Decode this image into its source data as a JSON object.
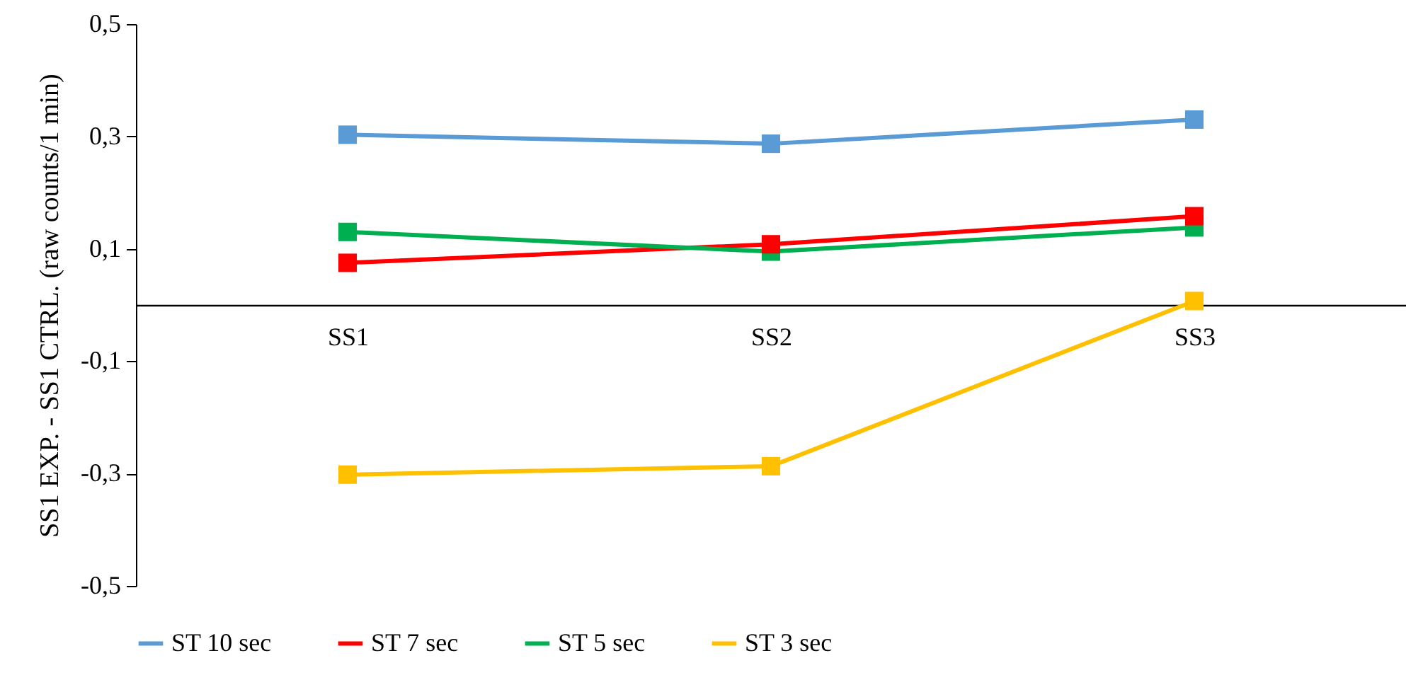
{
  "chart_data": {
    "type": "line",
    "ylabel": "SS1 EXP. - SS1 CTRL. (raw counts/1 min)",
    "categories": [
      "SS1",
      "SS2",
      "SS3"
    ],
    "series": [
      {
        "name": "ST 10 sec",
        "color": "#5b9bd5",
        "values": [
          0.303,
          0.287,
          0.33
        ]
      },
      {
        "name": "ST 7 sec",
        "color": "#ff0000",
        "values": [
          0.075,
          0.108,
          0.158
        ]
      },
      {
        "name": "ST 5 sec",
        "color": "#00b050",
        "values": [
          0.13,
          0.095,
          0.138
        ]
      },
      {
        "name": "ST 3 sec",
        "color": "#ffc000",
        "values": [
          -0.302,
          -0.287,
          0.007
        ]
      }
    ],
    "ylim": [
      -0.5,
      0.5
    ],
    "yticks": [
      {
        "value": -0.5,
        "label": "-0,5"
      },
      {
        "value": -0.3,
        "label": "-0,3"
      },
      {
        "value": -0.1,
        "label": "-0,1"
      },
      {
        "value": 0.1,
        "label": "0,1"
      },
      {
        "value": 0.3,
        "label": "0,3"
      },
      {
        "value": 0.5,
        "label": "0,5"
      }
    ],
    "grid": false,
    "legend": "bottom",
    "marker": "square",
    "line_style": "solid"
  }
}
